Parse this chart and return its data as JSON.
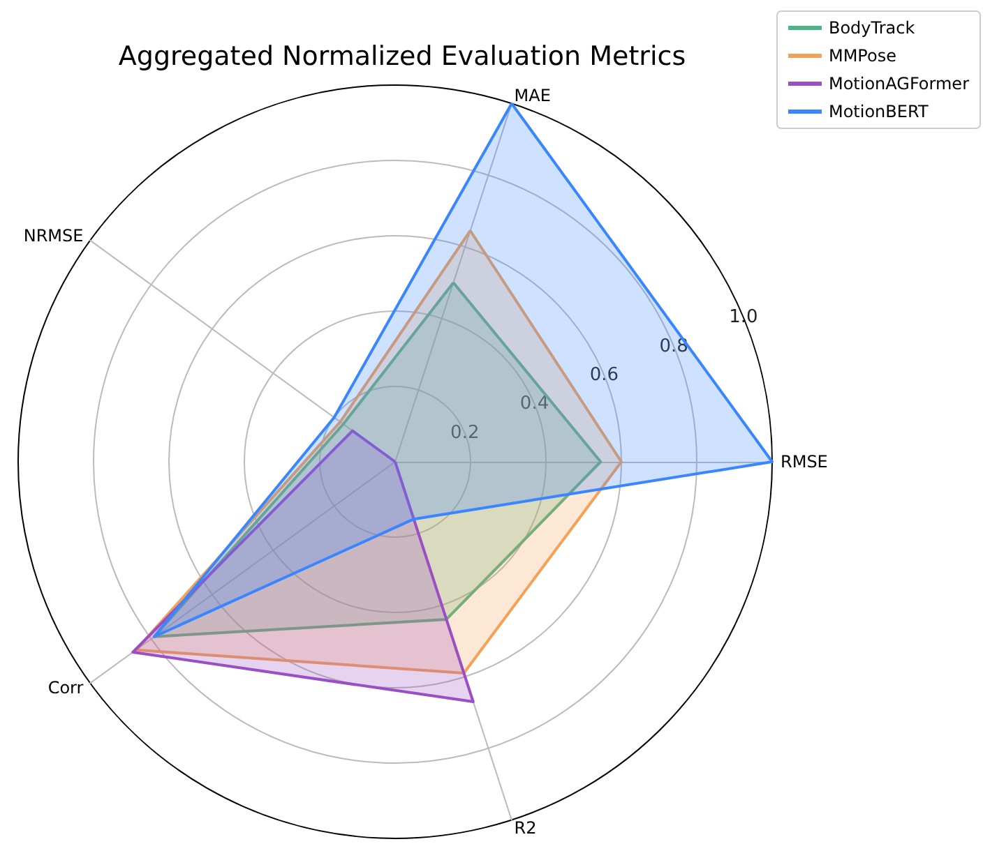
{
  "chart_data": {
    "type": "radar",
    "title": "Aggregated Normalized Evaluation Metrics",
    "categories": [
      "MAE",
      "RMSE",
      "R2",
      "Corr",
      "NRMSE"
    ],
    "series": [
      {
        "name": "BodyTrack",
        "color": "#4cb382",
        "values": [
          0.5,
          0.545,
          0.44,
          0.79,
          0.17
        ]
      },
      {
        "name": "MMPose",
        "color": "#f4a259",
        "values": [
          0.645,
          0.6,
          0.59,
          0.85,
          0.18
        ]
      },
      {
        "name": "MotionAGFormer",
        "color": "#9b4fc4",
        "values": [
          0,
          0,
          0.67,
          0.86,
          0.14
        ]
      },
      {
        "name": "MotionBERT",
        "color": "#3a86ff",
        "values": [
          1.0,
          1.0,
          0.16,
          0.79,
          0.2
        ]
      }
    ],
    "ylim": [
      0,
      1
    ],
    "yticks": [
      0.2,
      0.4,
      0.6,
      0.8,
      {
        "value": 1,
        "label": "1.0"
      }
    ],
    "grid": true,
    "legend": "top right"
  }
}
